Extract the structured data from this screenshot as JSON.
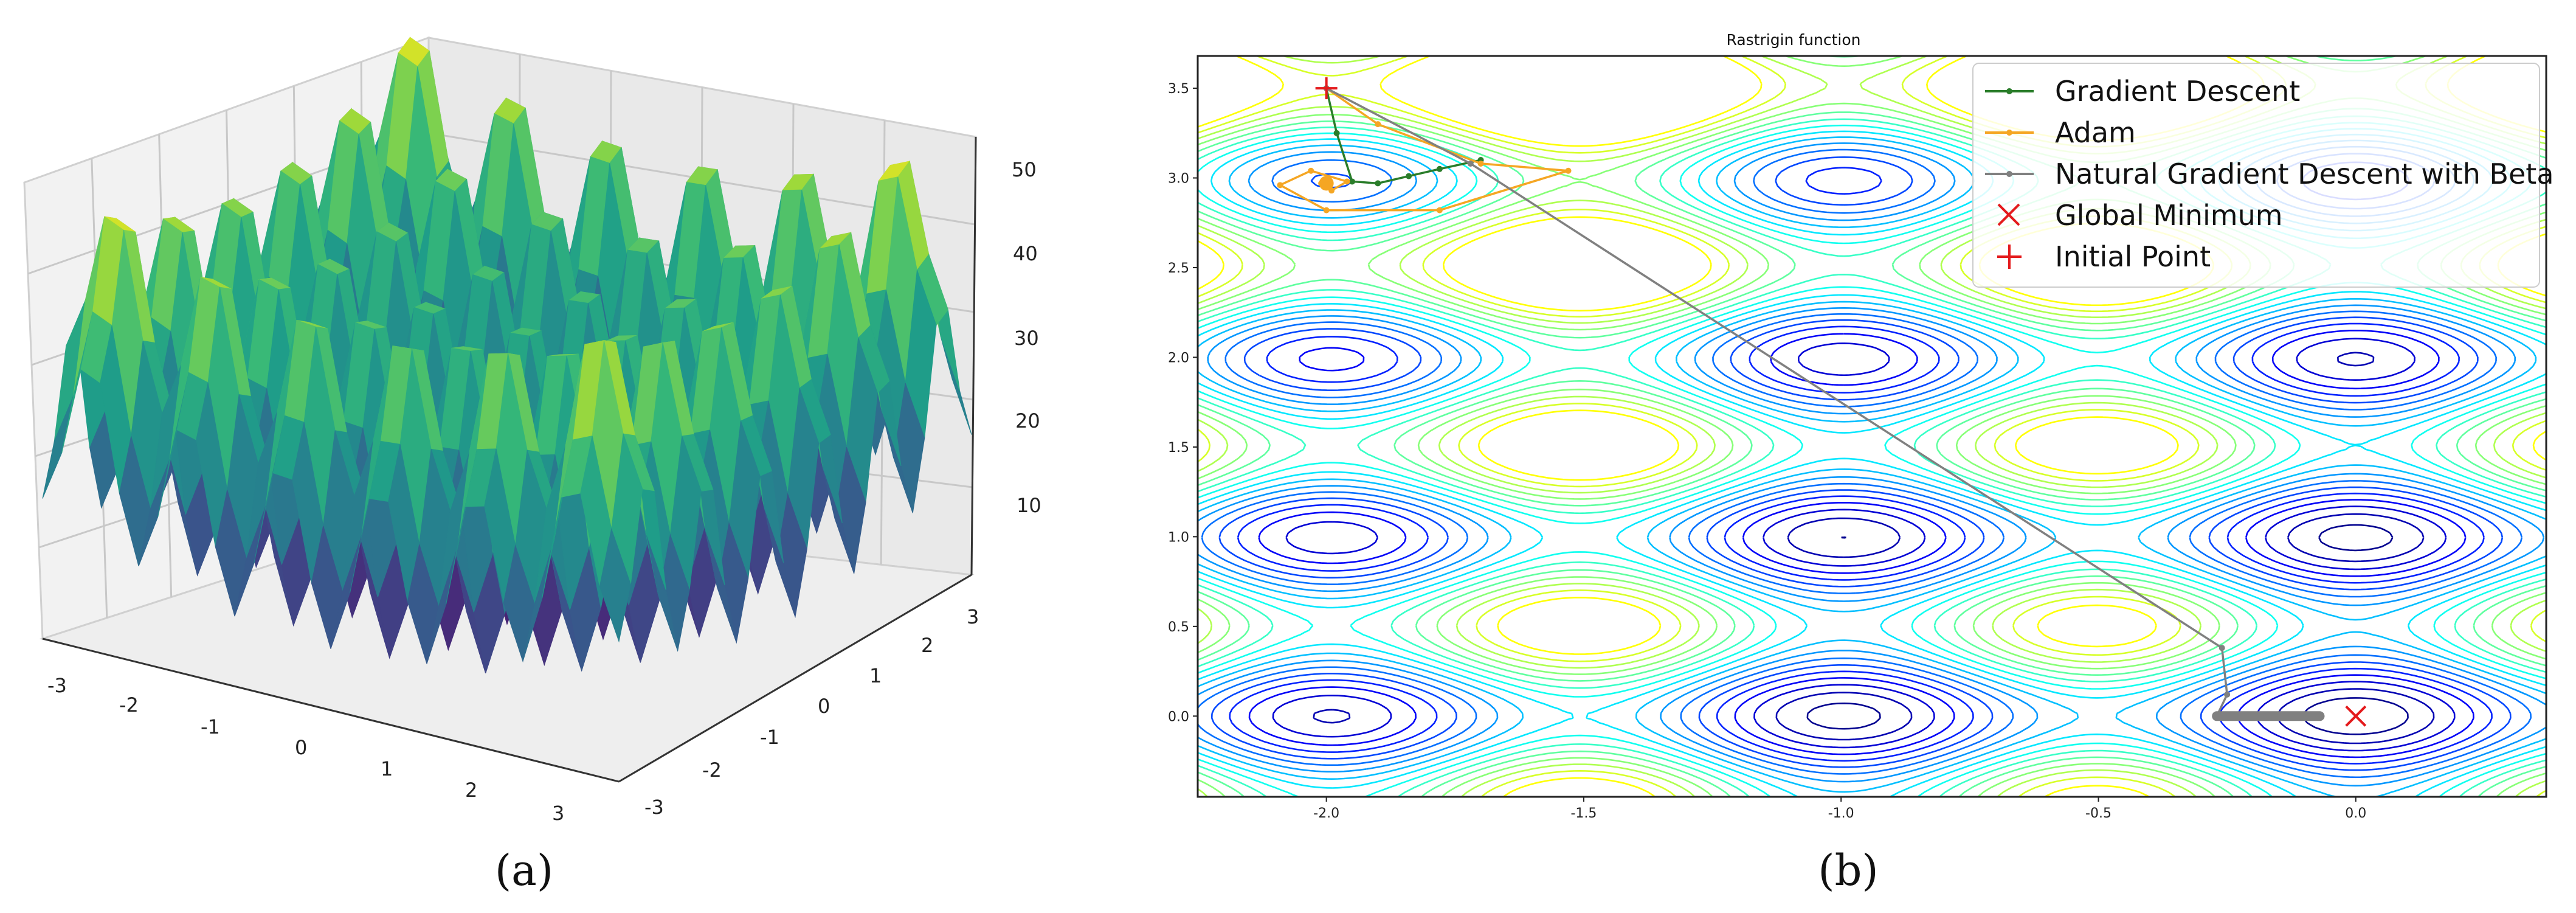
{
  "panel_a": {
    "caption": "(a)",
    "x_ticks": [
      "-3",
      "-2",
      "-1",
      "0",
      "1",
      "2",
      "3"
    ],
    "y_ticks": [
      "-3",
      "-2",
      "-1",
      "0",
      "1",
      "2",
      "3"
    ],
    "z_ticks": [
      "10",
      "20",
      "30",
      "40",
      "50"
    ]
  },
  "panel_b": {
    "caption": "(b)",
    "title": "Rastrigin function",
    "x_ticks": [
      "-2.0",
      "-1.5",
      "-1.0",
      "-0.5",
      "0.0"
    ],
    "y_ticks": [
      "0.0",
      "0.5",
      "1.0",
      "1.5",
      "2.0",
      "2.5",
      "3.0",
      "3.5"
    ],
    "legend": [
      {
        "label": "Gradient Descent",
        "color": "#2a7d2a"
      },
      {
        "label": "Adam",
        "color": "#f5a623"
      },
      {
        "label": "Natural Gradient Descent with Beta",
        "color": "#808080"
      },
      {
        "label": "Global Minimum",
        "color": "#e41a1c"
      },
      {
        "label": "Initial Point",
        "color": "#e41a1c"
      }
    ]
  },
  "chart_data": [
    {
      "type": "surface3d",
      "title": "",
      "function": "Rastrigin",
      "xlim": [
        -3,
        3
      ],
      "ylim": [
        -3,
        3
      ],
      "zlim": [
        2,
        52
      ],
      "colormap": "viridis"
    },
    {
      "type": "contour",
      "title": "Rastrigin function",
      "function": "Rastrigin",
      "xlim": [
        -2.25,
        0.37
      ],
      "ylim": [
        -0.45,
        3.68
      ],
      "colormap": "jet",
      "legend_position": "top-right",
      "series": [
        {
          "name": "Gradient Descent",
          "x": [
            -2.0,
            -1.98,
            -1.95,
            -1.9,
            -1.84,
            -1.78,
            -1.7
          ],
          "y": [
            3.5,
            3.25,
            2.98,
            2.97,
            3.01,
            3.05,
            3.1
          ]
        },
        {
          "name": "Adam",
          "x": [
            -2.0,
            -1.9,
            -1.7,
            -1.53,
            -1.78,
            -2.0,
            -2.09,
            -2.03,
            -1.96,
            -1.99,
            -2.01
          ],
          "y": [
            3.5,
            3.3,
            3.08,
            3.04,
            2.82,
            2.82,
            2.96,
            3.04,
            2.98,
            2.93,
            2.97
          ]
        },
        {
          "name": "Natural Gradient Descent with Beta",
          "x": [
            -2.0,
            -1.72,
            -0.26,
            -0.25,
            -0.27,
            -0.22,
            -0.17,
            -0.12,
            -0.07
          ],
          "y": [
            3.5,
            3.08,
            0.38,
            0.12,
            0.0,
            0.0,
            0.0,
            0.0,
            0.0
          ]
        },
        {
          "name": "Global Minimum",
          "x": [
            0.0
          ],
          "y": [
            0.0
          ]
        },
        {
          "name": "Initial Point",
          "x": [
            -2.0
          ],
          "y": [
            3.5
          ]
        }
      ]
    }
  ]
}
